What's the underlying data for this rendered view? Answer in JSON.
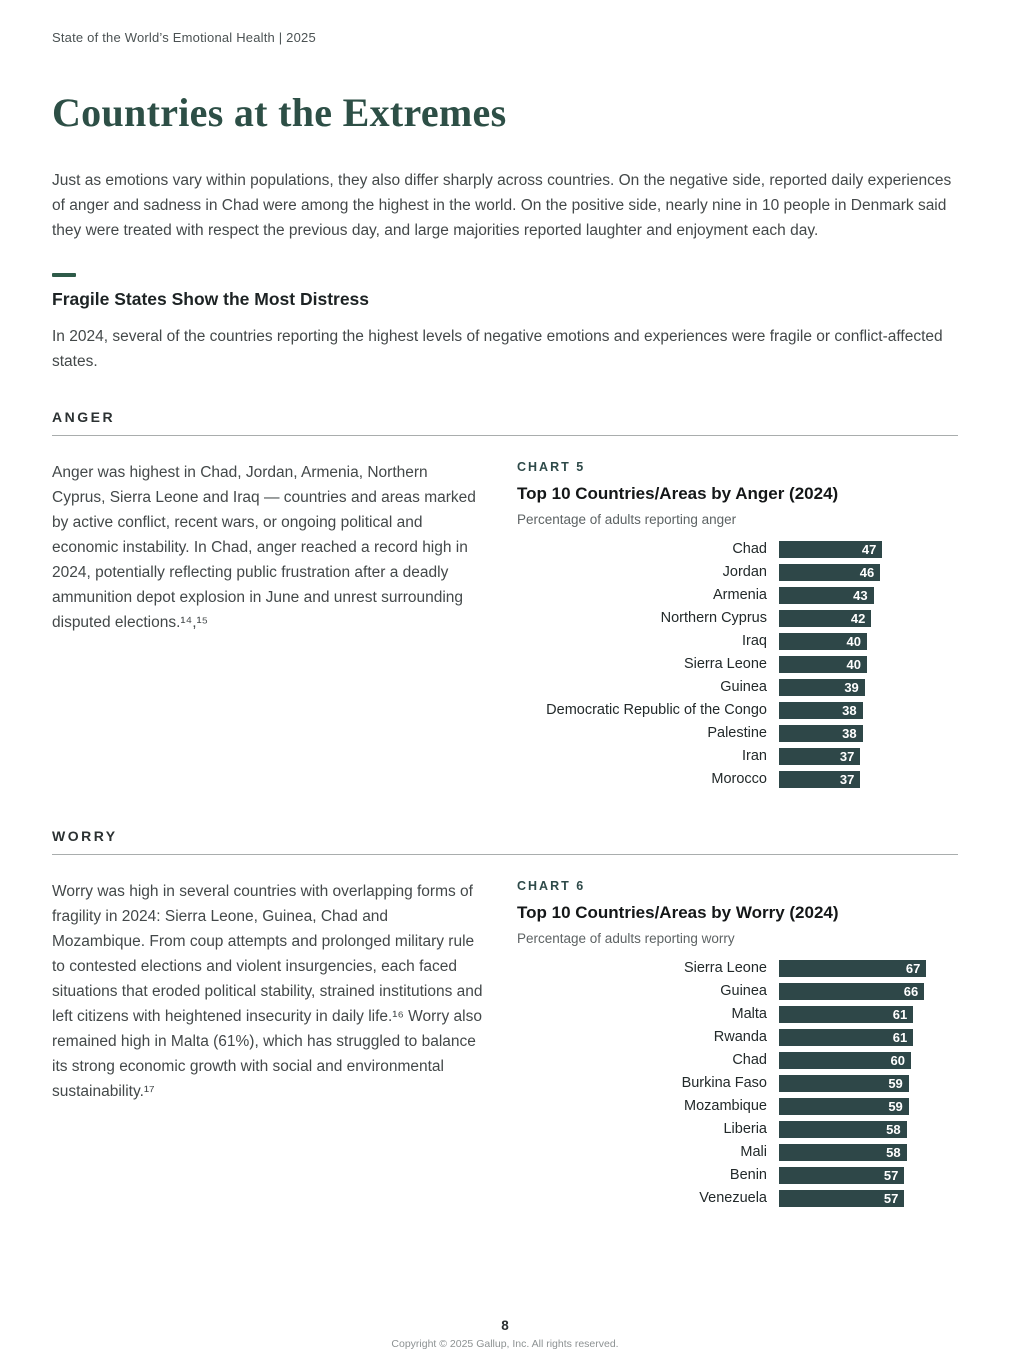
{
  "header": {
    "running_title": "State of the World’s Emotional Health  |  2025"
  },
  "page": {
    "title": "Countries at the Extremes",
    "intro": "Just as emotions vary within populations, they also differ sharply across countries. On the negative side, reported daily experiences of anger and sadness in Chad were among the highest in the world. On the positive side, nearly nine in 10 people in Denmark said they were treated with respect the previous day, and large majorities reported laughter and enjoyment each day.",
    "section_heading": "Fragile States Show the Most Distress",
    "section_intro": "In 2024, several of the countries reporting the highest levels of negative emotions and experiences were fragile or conflict-affected states."
  },
  "anger": {
    "label": "ANGER",
    "body": "Anger was highest in Chad, Jordan, Armenia, Northern Cyprus, Sierra Leone and Iraq — countries and areas marked by active conflict, recent wars, or ongoing political and economic instability. In Chad, anger reached a record high in 2024, potentially reflecting public frustration after a deadly ammunition depot explosion in June and unrest surrounding disputed elections.¹⁴,¹⁵"
  },
  "worry": {
    "label": "WORRY",
    "body": "Worry was high in several countries with overlapping forms of fragility in 2024: Sierra Leone, Guinea, Chad and Mozambique. From coup attempts and prolonged military rule to contested elections and violent insurgencies, each faced situations that eroded political stability, strained institutions and left citizens with heightened insecurity in daily life.¹⁶ Worry also remained high in Malta (61%), which has struggled to balance its strong economic growth with social and environmental sustainability.¹⁷"
  },
  "footer": {
    "page_number": "8",
    "copyright": "Copyright © 2025 Gallup, Inc. All rights reserved."
  },
  "colors": {
    "bar": "#2e4748",
    "accent": "#2e5b49",
    "title": "#2d4f46"
  },
  "chart_data": [
    {
      "type": "bar",
      "orientation": "horizontal",
      "eyebrow": "CHART 5",
      "title": "Top 10 Countries/Areas by Anger (2024)",
      "subtitle": "Percentage of adults reporting anger",
      "categories": [
        "Chad",
        "Jordan",
        "Armenia",
        "Northern Cyprus",
        "Iraq",
        "Sierra Leone",
        "Guinea",
        "Democratic Republic of the Congo",
        "Palestine",
        "Iran",
        "Morocco"
      ],
      "values": [
        47,
        46,
        43,
        42,
        40,
        40,
        39,
        38,
        38,
        37,
        37
      ],
      "xlim": [
        0,
        70
      ],
      "value_labels": true,
      "legend": "none",
      "grid": false
    },
    {
      "type": "bar",
      "orientation": "horizontal",
      "eyebrow": "CHART 6",
      "title": "Top 10 Countries/Areas by Worry (2024)",
      "subtitle": "Percentage of adults reporting worry",
      "categories": [
        "Sierra Leone",
        "Guinea",
        "Malta",
        "Rwanda",
        "Chad",
        "Burkina Faso",
        "Mozambique",
        "Liberia",
        "Mali",
        "Benin",
        "Venezuela"
      ],
      "values": [
        67,
        66,
        61,
        61,
        60,
        59,
        59,
        58,
        58,
        57,
        57
      ],
      "xlim": [
        0,
        70
      ],
      "value_labels": true,
      "legend": "none",
      "grid": false
    }
  ]
}
